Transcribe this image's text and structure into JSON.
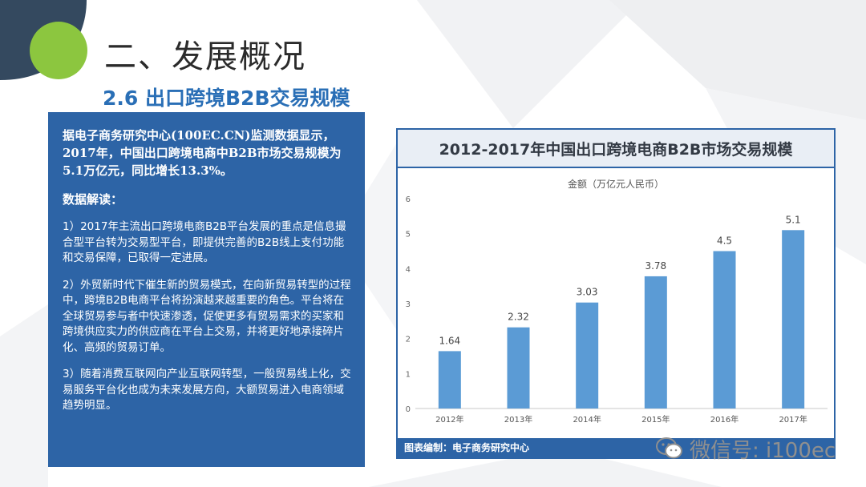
{
  "slide": {
    "title": "二、发展概况",
    "subtitle": "2.6 出口跨境B2B交易规模"
  },
  "textbox": {
    "lead": "据电子商务研究中心(100EC.CN)监测数据显示，2017年，中国出口跨境电商中B2B市场交易规模为5.1万亿元，同比增长13.3%。",
    "heading": "数据解读：",
    "points": [
      "1）2017年主流出口跨境电商B2B平台发展的重点是信息撮合型平台转为交易型平台，即提供完善的B2B线上支付功能和交易保障，已取得一定进展。",
      "2）外贸新时代下催生新的贸易模式，在向新贸易转型的过程中，跨境B2B电商平台将扮演越来越重要的角色。平台将在全球贸易参与者中快速渗透，促使更多有贸易需求的买家和跨境供应实力的供应商在平台上交易，并将更好地承接碎片化、高频的贸易订单。",
      "3）随着消费互联网向产业互联网转型，一般贸易线上化，交易服务平台化也成为未来发展方向，大额贸易进入电商领域趋势明显。"
    ]
  },
  "chart_footer": "图表编制：电子商务研究中心",
  "watermark": {
    "icon": "wechat-icon",
    "text": "微信号: i100ec"
  },
  "colors": {
    "accent_blue": "#2d64a6",
    "bar": "#5b9bd5",
    "green_circle": "#8cc63f"
  },
  "chart_data": {
    "type": "bar",
    "title": "2012-2017年中国出口跨境电商B2B市场交易规模",
    "series_label": "金额（万亿元人民币）",
    "categories": [
      "2012年",
      "2013年",
      "2014年",
      "2015年",
      "2016年",
      "2017年"
    ],
    "values": [
      1.64,
      2.32,
      3.03,
      3.78,
      4.5,
      5.1
    ],
    "value_labels": [
      "1.64",
      "2.32",
      "3.03",
      "3.78",
      "4.5",
      "5.1"
    ],
    "ylim": [
      0,
      6
    ],
    "yticks": [
      "0",
      "1",
      "2",
      "3",
      "4",
      "5",
      "6"
    ],
    "grid": false,
    "legend": "top-center"
  }
}
